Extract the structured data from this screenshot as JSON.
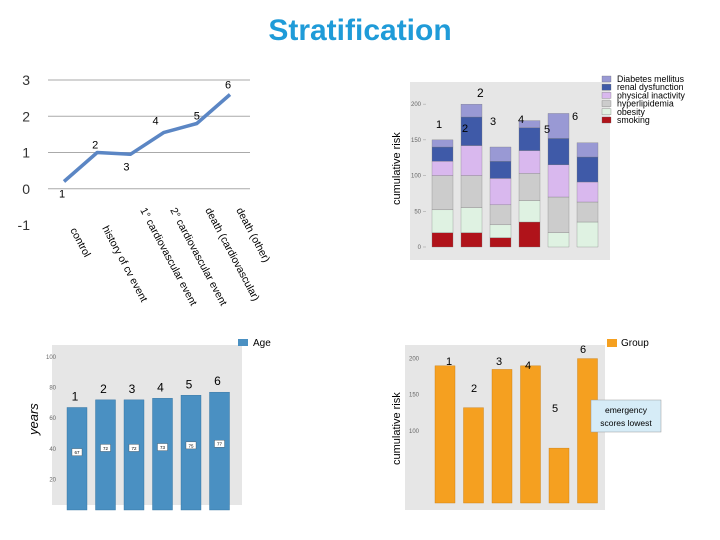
{
  "title": "Stratification",
  "chart_data": [
    {
      "type": "line",
      "id": "stratification-line",
      "categories": [
        "control",
        "history of cv event",
        "1° cardiovascular event",
        "2° cardiovascular event",
        "death (cardiovascular)",
        "death (other)"
      ],
      "values": [
        0.2,
        1.0,
        0.95,
        1.55,
        1.8,
        2.6
      ],
      "point_labels": [
        "1",
        "2",
        "3",
        "4",
        "5",
        "6"
      ],
      "y_ticks": [
        "3",
        "2",
        "1",
        "0",
        "-1"
      ],
      "ylim": [
        -1,
        3
      ]
    },
    {
      "type": "bar",
      "id": "risk-factor-stack",
      "ylabel": "cumulative risk",
      "header_number": "2",
      "categories": [
        "1",
        "2",
        "3",
        "4",
        "5",
        "6"
      ],
      "y_ticks": [
        "200",
        "150",
        "100",
        "50",
        "0"
      ],
      "ylim": [
        0,
        210
      ],
      "series": [
        {
          "name": "smoking",
          "color": "#b0131a",
          "values": [
            20,
            20,
            13,
            35,
            0,
            0
          ]
        },
        {
          "name": "obesity",
          "color": "#dff2e2",
          "values": [
            32,
            35,
            18,
            30,
            20,
            35
          ]
        },
        {
          "name": "hyperlipidemia",
          "color": "#cccccc",
          "values": [
            48,
            45,
            28,
            38,
            50,
            28
          ]
        },
        {
          "name": "physical inactivity",
          "color": "#d9b8ee",
          "values": [
            20,
            42,
            37,
            32,
            45,
            28
          ]
        },
        {
          "name": "renal dysfunction",
          "color": "#3f5aa8",
          "values": [
            20,
            40,
            24,
            32,
            37,
            35
          ]
        },
        {
          "name": "Diabetes mellitus",
          "color": "#9999d4",
          "values": [
            10,
            18,
            20,
            10,
            35,
            20
          ]
        }
      ],
      "legend": [
        "Diabetes mellitus",
        "renal dysfunction",
        "physical inactivity",
        "hyperlipidemia",
        "obesity",
        "smoking"
      ]
    },
    {
      "type": "bar",
      "id": "age-chart",
      "legend": [
        "Age"
      ],
      "ylabel": "years",
      "categories": [
        "1",
        "2",
        "3",
        "4",
        "5",
        "6"
      ],
      "values": [
        67,
        72,
        72,
        73,
        75,
        77
      ],
      "value_labels": [
        "67",
        "72",
        "72",
        "73",
        "75",
        "77"
      ],
      "y_ticks": [
        "100",
        "80",
        "60",
        "40",
        "20"
      ],
      "ylim": [
        0,
        100
      ],
      "color": "#4a90c2"
    },
    {
      "type": "bar",
      "id": "group-chart",
      "legend": [
        "Group"
      ],
      "ylabel": "cumulative risk",
      "categories": [
        "1",
        "2",
        "3",
        "4",
        "5",
        "6"
      ],
      "values": [
        190,
        132,
        185,
        190,
        76,
        200
      ],
      "y_ticks": [
        "200",
        "150",
        "100"
      ],
      "ylim": [
        0,
        205
      ],
      "color": "#f5a020",
      "annotation": "emergency scores lowest"
    }
  ]
}
